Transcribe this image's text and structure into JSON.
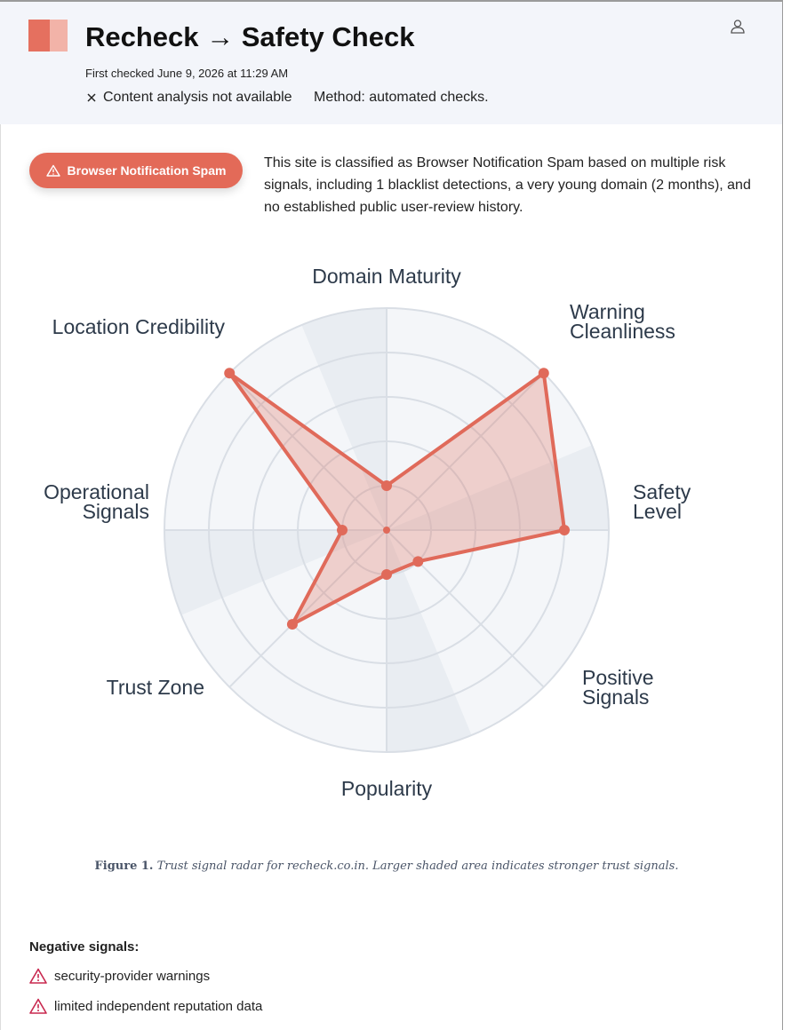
{
  "header": {
    "title": "Recheck → Safety Check",
    "first_checked": "First checked June 9, 2026 at 11:29 AM",
    "content_analysis": "Content analysis not available",
    "method": "Method: automated checks."
  },
  "badge": "Browser Notification Spam",
  "summary": "This site is classified as Browser Notification Spam based on multiple risk signals, including 1 blacklist detections, a very young domain (2 months), and no established public user-review history.",
  "chart_data": {
    "type": "radar",
    "categories": [
      "Domain Maturity",
      "Warning Cleanliness",
      "Safety Level",
      "Positive Signals",
      "Popularity",
      "Trust Zone",
      "Operational Signals",
      "Location Credibility"
    ],
    "values": [
      20,
      100,
      80,
      20,
      20,
      60,
      20,
      100
    ],
    "color": "#e06a5a",
    "rlim": [
      0,
      100
    ],
    "rticks": [
      20,
      40,
      60,
      80,
      100
    ]
  },
  "figure_caption": {
    "label": "Figure 1.",
    "text": "Trust signal radar for recheck.co.in. Larger shaded area indicates stronger trust signals."
  },
  "negative_signals": {
    "heading": "Negative signals:",
    "items": [
      "security-provider warnings",
      "limited independent reputation data"
    ]
  }
}
